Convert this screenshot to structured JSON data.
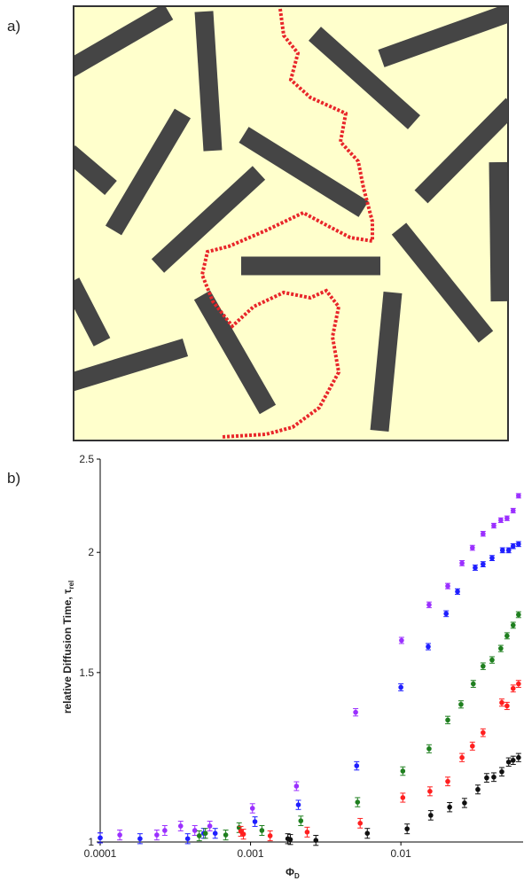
{
  "chart_data": {
    "type": "scatter",
    "panel_labels": [
      "a)",
      "b)"
    ],
    "xlabel": "Φ",
    "xlabel_sub": "D",
    "ylabel": "relative Diffusion Time, τ",
    "ylabel_sub": "rel",
    "xscale": "log",
    "yscale": "log",
    "xlim": [
      0.0001,
      0.065
    ],
    "ylim": [
      1,
      2.5
    ],
    "xticks": [
      0.0001,
      0.001,
      0.01
    ],
    "yticks": [
      1,
      1.5,
      2,
      2.5
    ],
    "series": [
      {
        "color": "#9b30ff",
        "error": 0.012,
        "x": [
          0.0001,
          0.000135,
          0.000238,
          0.000269,
          0.000343,
          0.000426,
          0.000536,
          0.00103,
          0.00202,
          0.005,
          0.0101,
          0.0154,
          0.0205,
          0.0255,
          0.0299,
          0.0352,
          0.0415,
          0.0462,
          0.0508,
          0.0558,
          0.0606
        ],
        "values": [
          1.01,
          1.017,
          1.017,
          1.028,
          1.039,
          1.028,
          1.039,
          1.084,
          1.143,
          1.364,
          1.62,
          1.764,
          1.845,
          1.949,
          2.022,
          2.091,
          2.132,
          2.16,
          2.17,
          2.21,
          2.29
        ]
      },
      {
        "color": "#1f1fff",
        "error": 0.012,
        "x": [
          0.0001,
          0.000184,
          0.000382,
          0.000488,
          0.000582,
          0.00107,
          0.00208,
          0.00508,
          0.01,
          0.0152,
          0.02,
          0.0238,
          0.0312,
          0.0352,
          0.0404,
          0.0474,
          0.0521,
          0.0558,
          0.0606
        ],
        "values": [
          1.01,
          1.008,
          1.008,
          1.021,
          1.021,
          1.05,
          1.093,
          1.2,
          1.448,
          1.596,
          1.727,
          1.821,
          1.928,
          1.944,
          1.973,
          2.01,
          2.01,
          2.03,
          2.04
        ]
      },
      {
        "color": "#1f7f1f",
        "error": 0.012,
        "x": [
          0.000456,
          0.000501,
          0.000684,
          0.00084,
          0.00119,
          0.00216,
          0.00515,
          0.0103,
          0.0154,
          0.0205,
          0.0251,
          0.0303,
          0.0352,
          0.0404,
          0.0462,
          0.0508,
          0.0558,
          0.0606
        ],
        "values": [
          1.015,
          1.021,
          1.017,
          1.035,
          1.028,
          1.052,
          1.1,
          1.185,
          1.25,
          1.339,
          1.39,
          1.46,
          1.523,
          1.546,
          1.589,
          1.638,
          1.68,
          1.723
        ]
      },
      {
        "color": "#ff1f1f",
        "error": 0.012,
        "x": [
          0.000861,
          0.000897,
          0.00135,
          0.00238,
          0.00536,
          0.0103,
          0.0156,
          0.0205,
          0.0255,
          0.0299,
          0.0352,
          0.0469,
          0.0508,
          0.0558,
          0.0606
        ],
        "values": [
          1.026,
          1.019,
          1.015,
          1.024,
          1.046,
          1.112,
          1.129,
          1.156,
          1.224,
          1.258,
          1.299,
          1.396,
          1.385,
          1.444,
          1.46
        ]
      },
      {
        "color": "#111111",
        "error": 0.012,
        "x": [
          0.00177,
          0.00184,
          0.00272,
          0.00598,
          0.011,
          0.0158,
          0.0211,
          0.0265,
          0.0325,
          0.0372,
          0.0415,
          0.0469,
          0.0521,
          0.0558,
          0.0606
        ],
        "values": [
          1.008,
          1.006,
          1.004,
          1.021,
          1.032,
          1.066,
          1.087,
          1.098,
          1.134,
          1.166,
          1.168,
          1.183,
          1.211,
          1.216,
          1.224
        ]
      }
    ]
  }
}
